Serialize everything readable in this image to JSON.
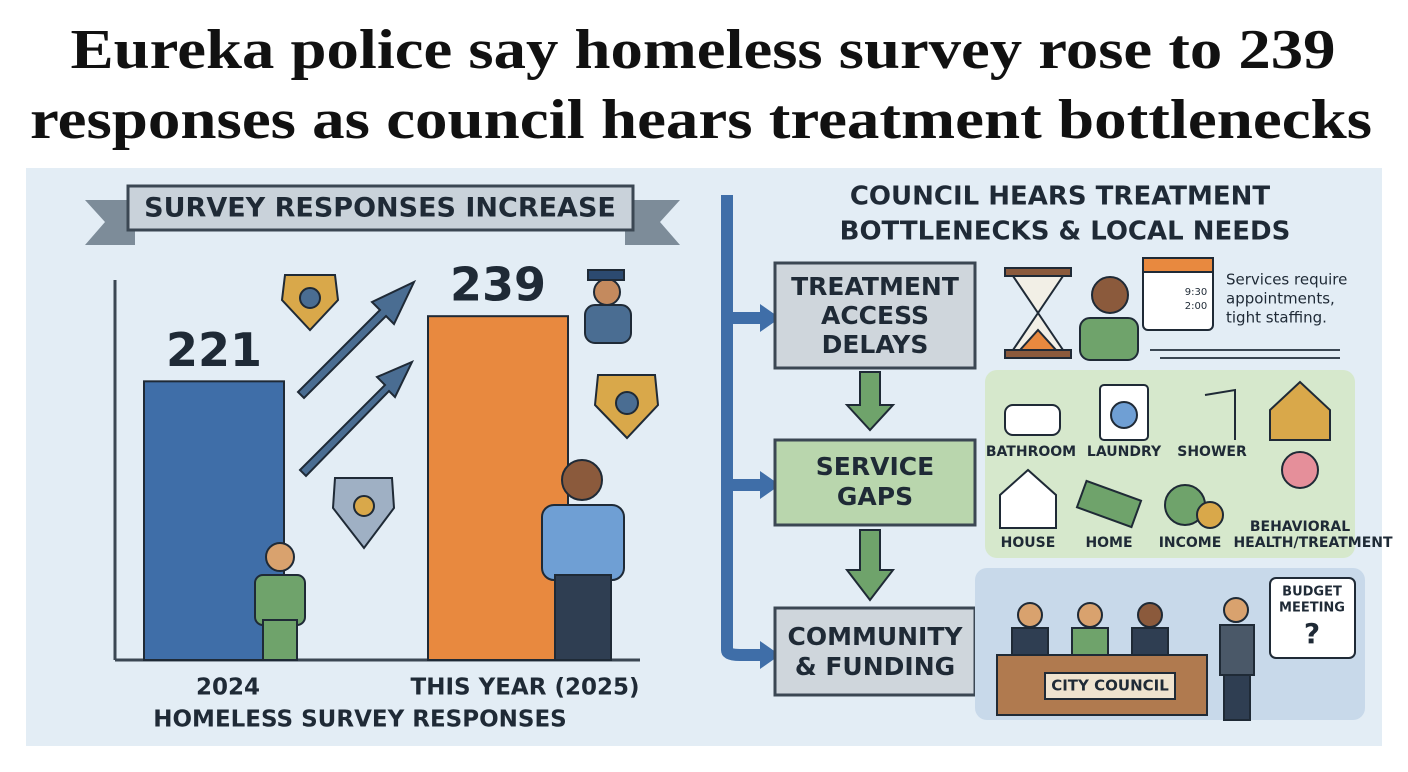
{
  "headline": [
    "Eureka police say homeless survey rose to 239",
    "responses as council hears treatment bottlenecks"
  ],
  "chart_data": {
    "type": "bar",
    "title": "SURVEY RESPONSES INCREASE",
    "categories": [
      "2024",
      "THIS YEAR (2025)"
    ],
    "values": [
      221,
      239
    ],
    "colors": [
      "#3f6ea8",
      "#e8893f"
    ],
    "xlabel": "HOMELESS SURVEY RESPONSES",
    "ylim": [
      144,
      249
    ]
  },
  "flow": {
    "title": [
      "COUNCIL HEARS TREATMENT",
      "BOTTLENECKS & LOCAL NEEDS"
    ],
    "steps": [
      [
        "TREATMENT",
        "ACCESS",
        "DELAYS"
      ],
      [
        "SERVICE",
        "GAPS"
      ],
      [
        "COMMUNITY",
        "& FUNDING"
      ]
    ]
  },
  "delays": {
    "times": [
      "9:30",
      "2:00"
    ],
    "note": [
      "Services require",
      "appointments,",
      "tight staffing."
    ]
  },
  "services": [
    "BATHROOM",
    "LAUNDRY",
    "SHOWER",
    "HOUSE",
    "HOME",
    "INCOME",
    "BEHAVIORAL",
    "HEALTH/TREATMENT"
  ],
  "council": {
    "desk": "CITY COUNCIL",
    "bubble": [
      "BUDGET",
      "MEETING",
      "?"
    ]
  }
}
